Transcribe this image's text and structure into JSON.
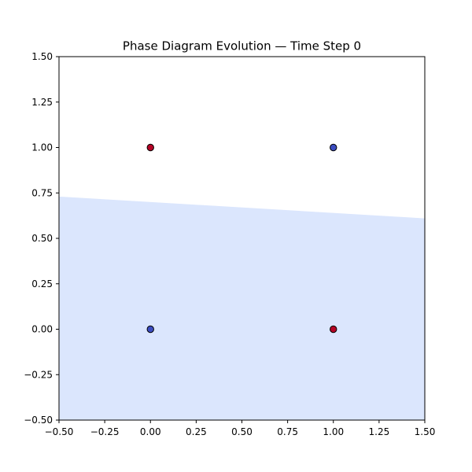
{
  "chart_data": {
    "type": "scatter",
    "title": "Phase Diagram Evolution — Time Step 0",
    "xlabel": "",
    "ylabel": "",
    "xlim": [
      -0.5,
      1.5
    ],
    "ylim": [
      -0.5,
      1.5
    ],
    "x_ticks": [
      "−0.50",
      "−0.25",
      "0.00",
      "0.25",
      "0.50",
      "0.75",
      "1.00",
      "1.25",
      "1.50"
    ],
    "y_ticks": [
      "−0.50",
      "−0.25",
      "0.00",
      "0.25",
      "0.50",
      "0.75",
      "1.00",
      "1.25",
      "1.50"
    ],
    "x_tick_values": [
      -0.5,
      -0.25,
      0,
      0.25,
      0.5,
      0.75,
      1.0,
      1.25,
      1.5
    ],
    "y_tick_values": [
      -0.5,
      -0.25,
      0,
      0.25,
      0.5,
      0.75,
      1.0,
      1.25,
      1.5
    ],
    "grid": false,
    "points": [
      {
        "x": 0,
        "y": 1,
        "class": "red"
      },
      {
        "x": 1,
        "y": 1,
        "class": "blue"
      },
      {
        "x": 0,
        "y": 0,
        "class": "blue"
      },
      {
        "x": 1,
        "y": 0,
        "class": "red"
      }
    ],
    "decision_boundary": {
      "points": [
        [
          -0.5,
          0.73
        ],
        [
          1.5,
          0.61
        ]
      ],
      "fill_below": "#dbe6fd",
      "fill_above": "#ffffff"
    },
    "colors": {
      "red": "#b40426",
      "blue": "#3b4cc0",
      "edge": "#000000"
    }
  }
}
